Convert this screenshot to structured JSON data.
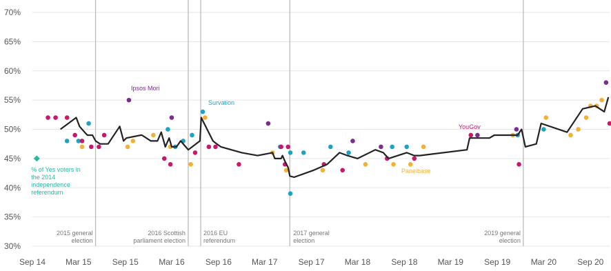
{
  "chart_data": {
    "type": "scatter",
    "title": "",
    "xlabel": "",
    "ylabel": "",
    "ylim": [
      30,
      70
    ],
    "y_ticks": [
      30,
      35,
      40,
      45,
      50,
      55,
      60,
      65,
      70
    ],
    "y_tick_labels": [
      "30%",
      "35%",
      "40%",
      "45%",
      "50%",
      "55%",
      "60%",
      "65%",
      "70%"
    ],
    "x_range": [
      "2014-09-01",
      "2020-11-15"
    ],
    "x_ticks": [
      "2014-09-01",
      "2015-03-01",
      "2015-09-01",
      "2016-03-01",
      "2016-09-01",
      "2017-03-01",
      "2017-09-01",
      "2018-03-01",
      "2018-09-01",
      "2019-03-01",
      "2019-09-01",
      "2020-03-01",
      "2020-09-01"
    ],
    "x_tick_labels": [
      "Sep 14",
      "Mar 15",
      "Sep 15",
      "Mar 16",
      "Sep 16",
      "Mar 17",
      "Sep 17",
      "Mar 18",
      "Sep 18",
      "Mar 19",
      "Sep 19",
      "Mar 20",
      "Sep 20"
    ],
    "grid": "horizontal",
    "colors": {
      "ipsos_mori": "#7b2d8e",
      "survation": "#1ba3c6",
      "panelbase": "#f2b134",
      "yougov": "#c8186e",
      "trend": "#222222",
      "referendum": "#2cb5a0",
      "event_line": "#bbbbbb",
      "grid": "#e6e6e6"
    },
    "events": [
      {
        "date": "2015-05-07",
        "label_lines": [
          "2015 general",
          "election"
        ]
      },
      {
        "date": "2016-05-05",
        "label_lines": [
          "2016 Scottish",
          "parliament election"
        ]
      },
      {
        "date": "2016-06-23",
        "label_lines": [
          "2016 EU",
          "referendum"
        ]
      },
      {
        "date": "2017-06-08",
        "label_lines": [
          "2017 general",
          "election"
        ]
      },
      {
        "date": "2019-12-12",
        "label_lines": [
          "2019 general",
          "election"
        ]
      }
    ],
    "referendum": {
      "date": "2014-09-18",
      "value": 45,
      "label_lines": [
        "% of Yes voters in",
        "the 2014",
        "independence",
        "referendum"
      ]
    },
    "pollster_labels": [
      {
        "name": "Ipsos Mori",
        "series": "ipsos_mori"
      },
      {
        "name": "Survation",
        "series": "survation"
      },
      {
        "name": "YouGov",
        "series": "yougov"
      },
      {
        "name": "Panelbase",
        "series": "panelbase"
      }
    ],
    "trend": {
      "x": [
        "2014-12-20",
        "2015-01-20",
        "2015-02-20",
        "2015-03-05",
        "2015-03-15",
        "2015-03-25",
        "2015-04-05",
        "2015-04-15",
        "2015-04-25",
        "2015-05-07",
        "2015-05-25",
        "2015-06-25",
        "2015-08-10",
        "2015-08-25",
        "2015-09-05",
        "2015-11-01",
        "2015-11-05",
        "2015-12-10",
        "2016-01-05",
        "2016-01-20",
        "2016-02-05",
        "2016-02-20",
        "2016-03-01",
        "2016-03-20",
        "2016-04-05",
        "2016-04-25",
        "2016-05-05",
        "2016-06-20",
        "2016-06-25",
        "2016-08-10",
        "2016-08-25",
        "2016-09-10",
        "2016-12-01",
        "2017-02-01",
        "2017-04-01",
        "2017-04-10",
        "2017-05-05",
        "2017-05-10",
        "2017-05-20",
        "2017-06-01",
        "2017-06-08",
        "2017-06-25",
        "2017-09-10",
        "2017-11-01",
        "2017-12-20",
        "2018-01-20",
        "2018-03-01",
        "2018-05-10",
        "2018-06-10",
        "2018-07-01",
        "2018-09-10",
        "2018-10-10",
        "2018-11-01",
        "2019-05-05",
        "2019-05-15",
        "2019-08-01",
        "2019-08-20",
        "2019-11-01",
        "2019-11-20",
        "2019-12-05",
        "2019-12-20",
        "2020-02-01",
        "2020-02-20",
        "2020-06-01",
        "2020-08-01",
        "2020-09-20",
        "2020-10-25",
        "2020-11-10"
      ],
      "y": [
        50,
        51,
        52,
        50.5,
        50,
        49.5,
        49,
        49,
        49,
        48,
        47.5,
        47.5,
        50.5,
        48,
        48.5,
        49,
        49,
        48,
        48,
        49.5,
        47,
        48.5,
        47,
        47,
        48,
        47,
        46.5,
        48,
        52,
        48,
        47.5,
        47,
        46,
        45.5,
        46,
        45,
        45,
        45.5,
        44.5,
        43.5,
        42,
        41.8,
        43,
        44,
        46,
        45.5,
        45,
        46.5,
        46,
        45,
        46,
        45.5,
        45.5,
        46.5,
        48.5,
        48.5,
        49,
        49,
        49,
        50,
        47,
        47.5,
        51,
        49.5,
        53.5,
        54,
        53,
        55.5
      ]
    },
    "series": [
      {
        "key": "ipsos_mori",
        "x": [
          "2015-09-15",
          "2016-03-01",
          "2017-03-15",
          "2018-02-10",
          "2018-06-01",
          "2019-06-15",
          "2019-11-15",
          "2020-11-01"
        ],
        "y": [
          55,
          52,
          51,
          48,
          47,
          49,
          50,
          58
        ]
      },
      {
        "key": "survation",
        "x": [
          "2015-01-15",
          "2015-03-01",
          "2015-04-10",
          "2016-02-15",
          "2016-03-15",
          "2016-04-15",
          "2016-05-20",
          "2016-07-01",
          "2017-05-01",
          "2017-06-10",
          "2017-06-10",
          "2017-08-01",
          "2017-11-15",
          "2018-01-25",
          "2018-07-15",
          "2018-09-10",
          "2019-11-20",
          "2020-03-01",
          "2020-12-01"
        ],
        "y": [
          48,
          48,
          51,
          50,
          47,
          48,
          49,
          53,
          47,
          46,
          39,
          46,
          47,
          46,
          47,
          47,
          49,
          50,
          54
        ]
      },
      {
        "key": "panelbase",
        "x": [
          "2015-03-15",
          "2015-09-10",
          "2015-10-01",
          "2015-12-20",
          "2016-02-25",
          "2016-05-15",
          "2016-07-10",
          "2017-04-01",
          "2017-05-25",
          "2017-10-15",
          "2018-04-01",
          "2018-07-20",
          "2018-09-25",
          "2018-11-15",
          "2019-11-01",
          "2020-03-10",
          "2020-06-15",
          "2020-07-15",
          "2020-08-15",
          "2020-09-01",
          "2020-09-25",
          "2020-10-15"
        ],
        "y": [
          47,
          47,
          48,
          49,
          47,
          44,
          52,
          46,
          43,
          43,
          44,
          44,
          44,
          47,
          49,
          52,
          49,
          50,
          52,
          54,
          54,
          55
        ]
      },
      {
        "key": "yougov",
        "x": [
          "2014-11-01",
          "2014-12-01",
          "2015-01-15",
          "2015-02-15",
          "2015-03-15",
          "2015-04-20",
          "2015-05-20",
          "2015-06-10",
          "2016-02-01",
          "2016-02-25",
          "2016-06-01",
          "2016-07-25",
          "2016-08-20",
          "2016-11-20",
          "2017-05-05",
          "2017-05-20",
          "2017-06-01",
          "2017-10-20",
          "2018-01-01",
          "2018-06-25",
          "2018-10-10",
          "2019-05-20",
          "2019-11-25",
          "2020-11-15"
        ],
        "y": [
          52,
          52,
          52,
          49,
          48,
          47,
          47,
          49,
          45,
          44,
          46,
          47,
          47,
          44,
          47,
          44,
          47,
          44,
          43,
          45,
          45,
          49,
          44,
          51
        ]
      }
    ]
  }
}
